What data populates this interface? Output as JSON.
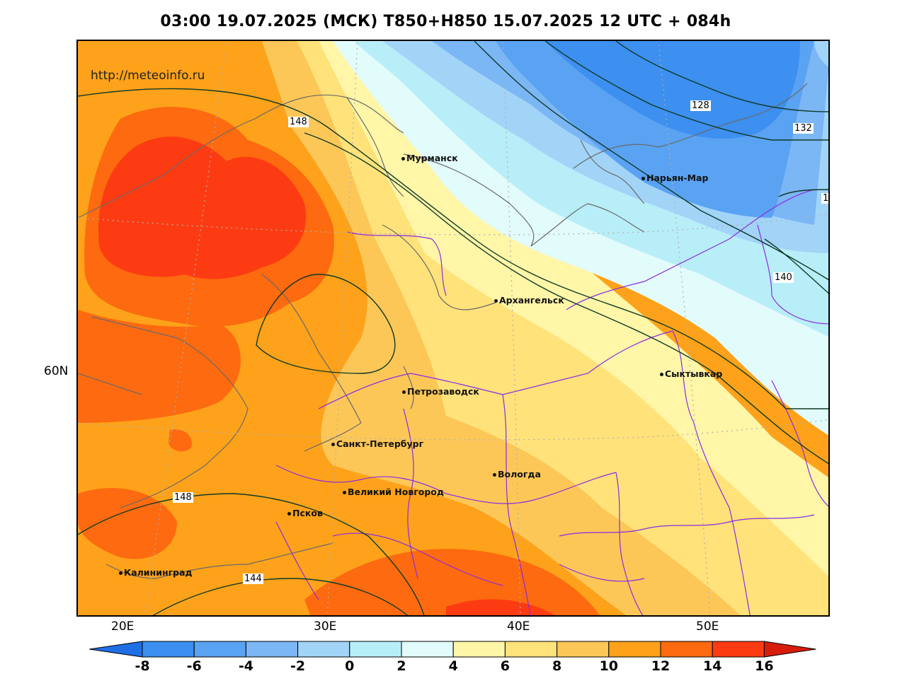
{
  "title": "03:00 19.07.2025 (МСК) T850+H850 15.07.2025 12 UTC + 084h",
  "watermark": "http://meteoinfo.ru",
  "latitude_labels": [
    "60N"
  ],
  "longitude_labels": [
    "20E",
    "30E",
    "40E",
    "50E"
  ],
  "cities": [
    {
      "name": "Мурманск"
    },
    {
      "name": "Нарьян-Мар"
    },
    {
      "name": "Архангельск"
    },
    {
      "name": "Сыктывкар"
    },
    {
      "name": "Петрозаводск"
    },
    {
      "name": "Санкт-Петербург"
    },
    {
      "name": "Вологда"
    },
    {
      "name": "Великий Новгород"
    },
    {
      "name": "Псков"
    },
    {
      "name": "Калининград"
    }
  ],
  "contour_labels": [
    "148",
    "128",
    "132",
    "1",
    "140",
    "148",
    "144"
  ],
  "colorbar": {
    "ticks": [
      "-8",
      "-6",
      "-4",
      "-2",
      "0",
      "2",
      "4",
      "6",
      "8",
      "10",
      "12",
      "14",
      "16"
    ],
    "colors": [
      "#1e6fe6",
      "#3d8ff0",
      "#5aa2f2",
      "#7bb6f5",
      "#a2d4f8",
      "#b8eef8",
      "#e2fbfb",
      "#fff6a8",
      "#ffe27a",
      "#fdc758",
      "#fda21a",
      "#fd6a0f",
      "#fd3b12",
      "#d81c0c"
    ]
  },
  "colors": {
    "coast": "#6a6a6a",
    "borders": "#8a2be2",
    "contours": "#0f3a26"
  }
}
